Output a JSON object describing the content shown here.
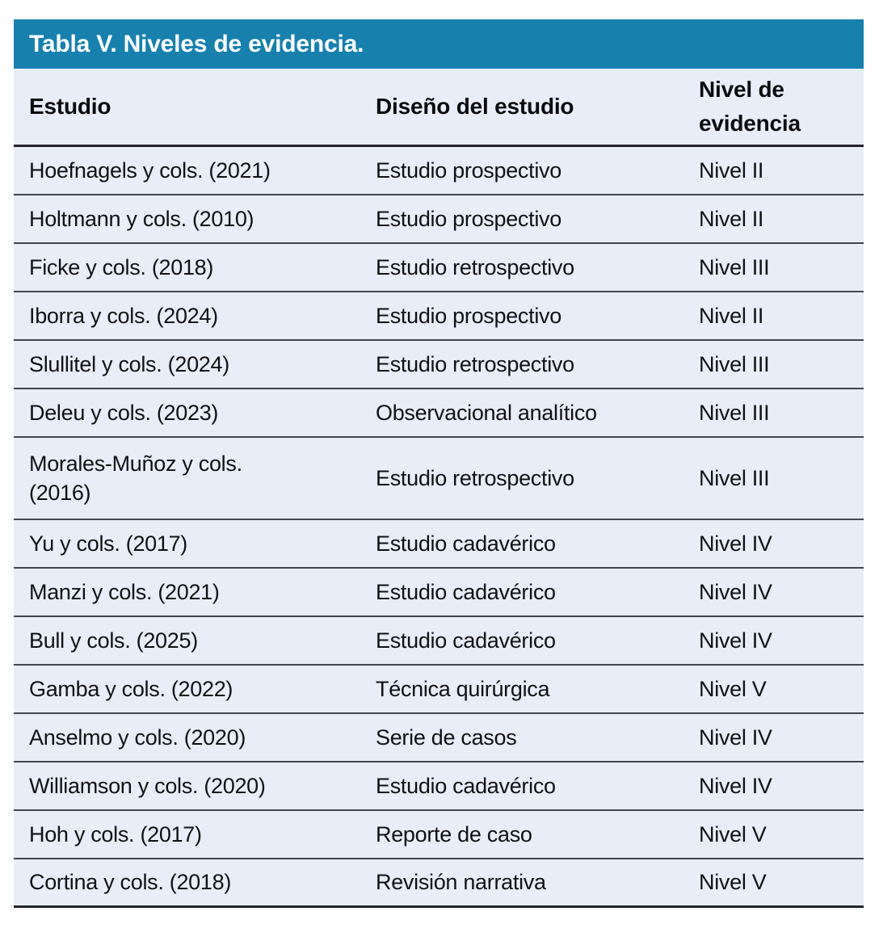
{
  "title": "Tabla V. Niveles de evidencia.",
  "colors": {
    "title_bar_bg": "#1780ad",
    "title_text": "#ffffff",
    "table_bg": "#e9edf7",
    "body_text": "#101114",
    "strong_border": "#22242c",
    "row_separator": "#42464e",
    "page_bg": "#ffffff"
  },
  "table": {
    "columns": [
      "Estudio",
      "Diseño del estudio",
      "Nivel de evidencia"
    ],
    "rows": [
      {
        "study": "Hoefnagels y cols. (2021)",
        "design": "Estudio prospectivo",
        "level": "Nivel II"
      },
      {
        "study": "Holtmann y cols. (2010)",
        "design": "Estudio prospectivo",
        "level": "Nivel II"
      },
      {
        "study": "Ficke y cols. (2018)",
        "design": "Estudio retrospectivo",
        "level": "Nivel III"
      },
      {
        "study": "Iborra y cols. (2024)",
        "design": "Estudio prospectivo",
        "level": "Nivel II"
      },
      {
        "study": "Slullitel y cols. (2024)",
        "design": "Estudio retrospectivo",
        "level": "Nivel III"
      },
      {
        "study": "Deleu y cols. (2023)",
        "design": "Observacional analítico",
        "level": "Nivel III"
      },
      {
        "study": "Morales-Muñoz y cols. (2016)",
        "design": "Estudio retrospectivo",
        "level": "Nivel III"
      },
      {
        "study": "Yu y cols. (2017)",
        "design": "Estudio cadavérico",
        "level": "Nivel IV"
      },
      {
        "study": "Manzi y cols. (2021)",
        "design": "Estudio cadavérico",
        "level": "Nivel IV"
      },
      {
        "study": "Bull y cols. (2025)",
        "design": "Estudio cadavérico",
        "level": "Nivel IV"
      },
      {
        "study": "Gamba y cols. (2022)",
        "design": "Técnica quirúrgica",
        "level": "Nivel V"
      },
      {
        "study": "Anselmo y cols. (2020)",
        "design": "Serie de casos",
        "level": "Nivel IV"
      },
      {
        "study": "Williamson y cols. (2020)",
        "design": "Estudio cadavérico",
        "level": "Nivel IV"
      },
      {
        "study": "Hoh y cols. (2017)",
        "design": "Reporte de caso",
        "level": "Nivel V"
      },
      {
        "study": "Cortina y cols. (2018)",
        "design": "Revisión narrativa",
        "level": "Nivel V"
      }
    ]
  },
  "chart_data": {
    "type": "table",
    "title": "Tabla V. Niveles de evidencia.",
    "columns": [
      "Estudio",
      "Diseño del estudio",
      "Nivel de evidencia"
    ],
    "rows": [
      [
        "Hoefnagels y cols. (2021)",
        "Estudio prospectivo",
        "Nivel II"
      ],
      [
        "Holtmann y cols. (2010)",
        "Estudio prospectivo",
        "Nivel II"
      ],
      [
        "Ficke y cols. (2018)",
        "Estudio retrospectivo",
        "Nivel III"
      ],
      [
        "Iborra y cols. (2024)",
        "Estudio prospectivo",
        "Nivel II"
      ],
      [
        "Slullitel y cols. (2024)",
        "Estudio retrospectivo",
        "Nivel III"
      ],
      [
        "Deleu y cols. (2023)",
        "Observacional analítico",
        "Nivel III"
      ],
      [
        "Morales-Muñoz y cols. (2016)",
        "Estudio retrospectivo",
        "Nivel III"
      ],
      [
        "Yu y cols. (2017)",
        "Estudio cadavérico",
        "Nivel IV"
      ],
      [
        "Manzi y cols. (2021)",
        "Estudio cadavérico",
        "Nivel IV"
      ],
      [
        "Bull y cols. (2025)",
        "Estudio cadavérico",
        "Nivel IV"
      ],
      [
        "Gamba y cols. (2022)",
        "Técnica quirúrgica",
        "Nivel V"
      ],
      [
        "Anselmo y cols. (2020)",
        "Serie de casos",
        "Nivel IV"
      ],
      [
        "Williamson y cols. (2020)",
        "Estudio cadavérico",
        "Nivel IV"
      ],
      [
        "Hoh y cols. (2017)",
        "Reporte de caso",
        "Nivel V"
      ],
      [
        "Cortina y cols. (2018)",
        "Revisión narrativa",
        "Nivel V"
      ]
    ]
  }
}
